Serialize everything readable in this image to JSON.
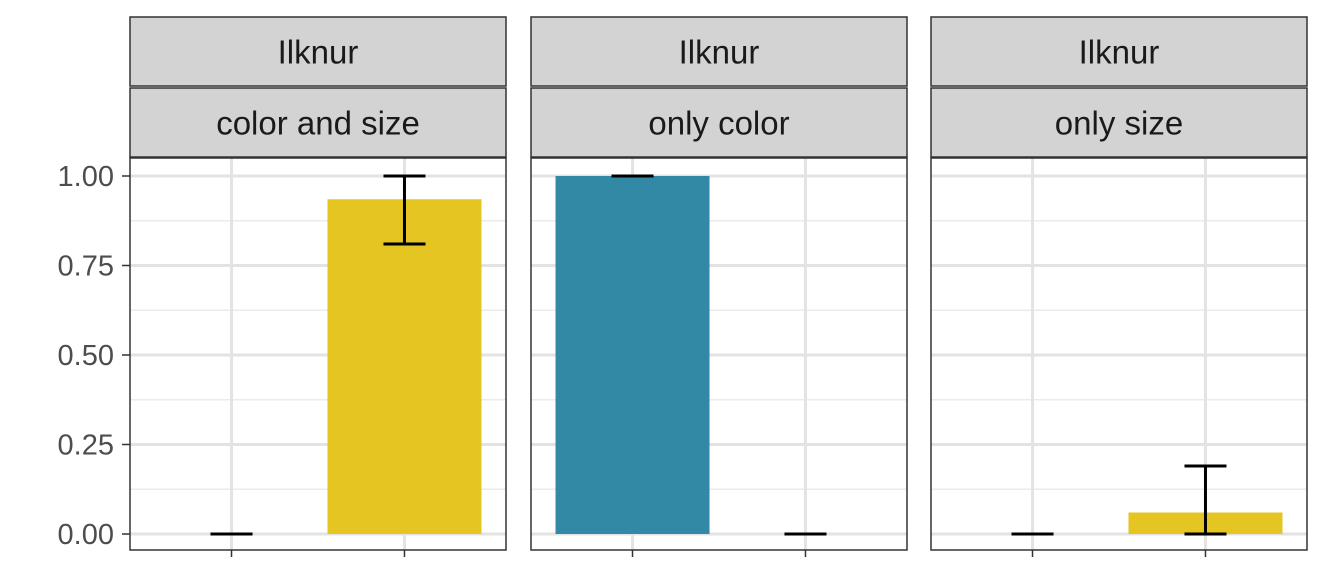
{
  "chart_data": {
    "type": "bar",
    "title": "",
    "xlabel": "",
    "ylabel": "",
    "ylim": [
      0,
      1.05
    ],
    "yticks": [
      "0.00",
      "0.25",
      "0.50",
      "0.75",
      "1.00"
    ],
    "grid": true,
    "legend": "none",
    "colors": {
      "blue": "#3189a5",
      "yellow": "#e4c521"
    },
    "panels": [
      {
        "row_label": "Ilknur",
        "col_label": "color and size",
        "bars": [
          {
            "value": 0.0,
            "err_low": 0.0,
            "err_high": 0.0,
            "color": "#3189a5"
          },
          {
            "value": 0.935,
            "err_low": 0.81,
            "err_high": 1.0,
            "color": "#e4c521"
          }
        ]
      },
      {
        "row_label": "Ilknur",
        "col_label": "only color",
        "bars": [
          {
            "value": 1.0,
            "err_low": 1.0,
            "err_high": 1.0,
            "color": "#3189a5"
          },
          {
            "value": 0.0,
            "err_low": 0.0,
            "err_high": 0.0,
            "color": "#e4c521"
          }
        ]
      },
      {
        "row_label": "Ilknur",
        "col_label": "only size",
        "bars": [
          {
            "value": 0.0,
            "err_low": 0.0,
            "err_high": 0.0,
            "color": "#3189a5"
          },
          {
            "value": 0.06,
            "err_low": 0.0,
            "err_high": 0.19,
            "color": "#e4c521"
          }
        ]
      }
    ]
  }
}
